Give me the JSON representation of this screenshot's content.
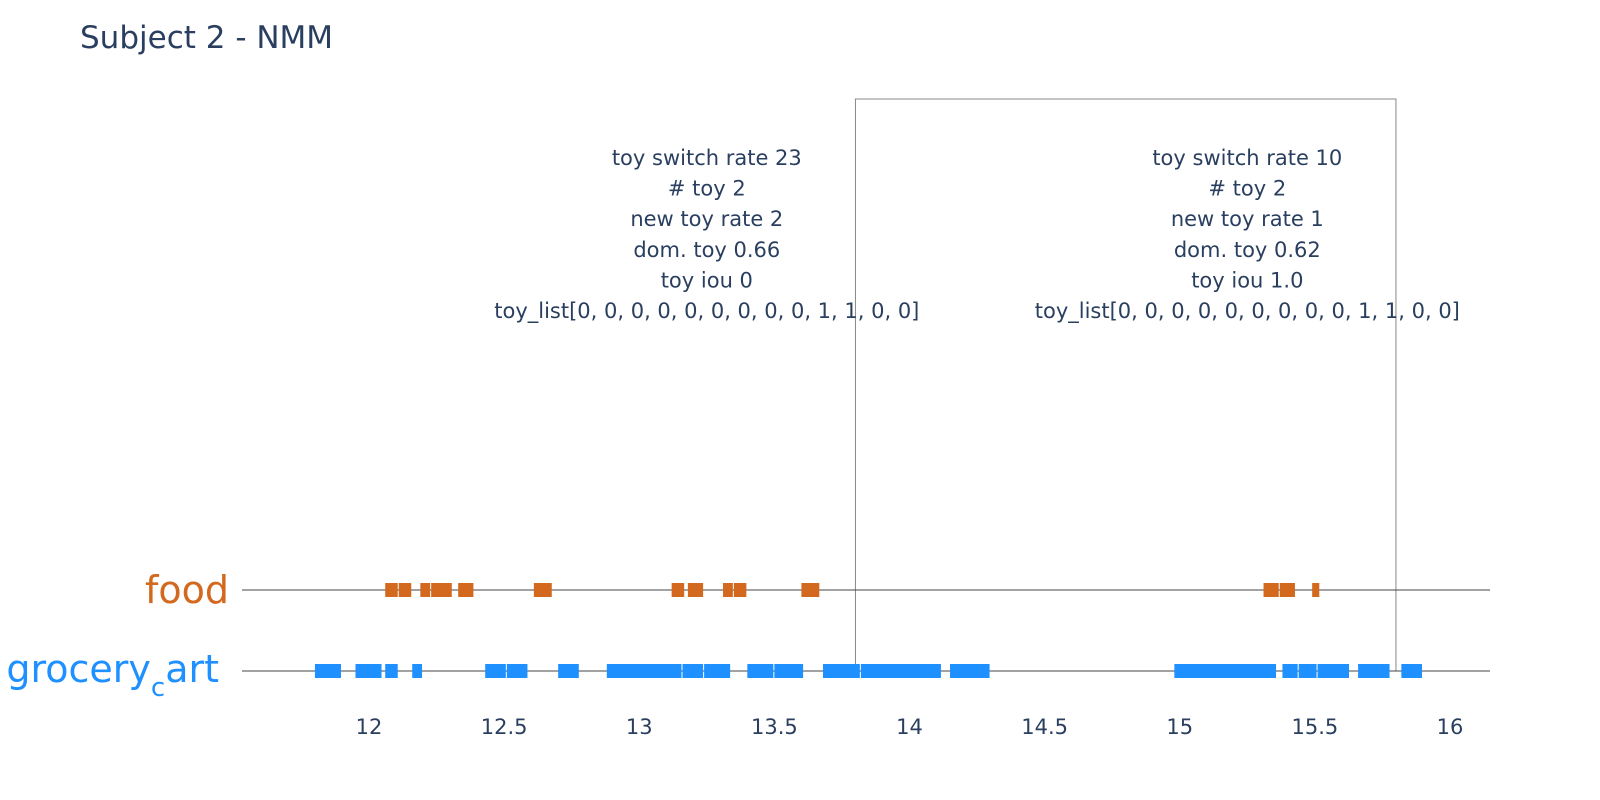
{
  "chart_data": {
    "type": "timeline",
    "title": "Subject 2 - NMM",
    "xlim": [
      11.55,
      16.15
    ],
    "x_ticks": [
      12,
      12.5,
      13,
      13.5,
      14,
      14.5,
      15,
      15.5,
      16
    ],
    "x_tick_labels": [
      "12",
      "12.5",
      "13",
      "13.5",
      "14",
      "14.5",
      "15",
      "15.5",
      "16"
    ],
    "categories": [
      "food",
      "grocery_cart"
    ],
    "category_label_main": [
      "food",
      "grocery"
    ],
    "category_label_sub": [
      "",
      "c"
    ],
    "category_label_tail": [
      "",
      "art"
    ],
    "colors": {
      "food": "#d2691e",
      "grocery_cart": "#1e90ff",
      "text": "#2a3f5f",
      "axis_line": "#444444",
      "box": "#888888"
    },
    "series": [
      {
        "name": "food",
        "segments": [
          [
            12.06,
            12.11
          ],
          [
            12.11,
            12.16
          ],
          [
            12.19,
            12.23
          ],
          [
            12.23,
            12.31
          ],
          [
            12.33,
            12.39
          ],
          [
            12.61,
            12.68
          ],
          [
            13.12,
            13.17
          ],
          [
            13.18,
            13.24
          ],
          [
            13.31,
            13.35
          ],
          [
            13.35,
            13.4
          ],
          [
            13.6,
            13.67
          ],
          [
            15.31,
            15.37
          ],
          [
            15.37,
            15.43
          ],
          [
            15.49,
            15.52
          ]
        ]
      },
      {
        "name": "grocery_cart",
        "segments": [
          [
            11.8,
            11.9
          ],
          [
            11.95,
            12.05
          ],
          [
            12.06,
            12.11
          ],
          [
            12.16,
            12.2
          ],
          [
            12.43,
            12.51
          ],
          [
            12.51,
            12.59
          ],
          [
            12.7,
            12.78
          ],
          [
            12.88,
            13.16
          ],
          [
            13.16,
            13.24
          ],
          [
            13.24,
            13.34
          ],
          [
            13.4,
            13.5
          ],
          [
            13.5,
            13.61
          ],
          [
            13.68,
            13.82
          ],
          [
            13.82,
            14.12
          ],
          [
            14.15,
            14.3
          ],
          [
            14.98,
            15.36
          ],
          [
            15.38,
            15.44
          ],
          [
            15.44,
            15.51
          ],
          [
            15.51,
            15.63
          ],
          [
            15.66,
            15.78
          ],
          [
            15.82,
            15.9
          ]
        ]
      }
    ],
    "box": {
      "x0": 13.8,
      "x1": 15.8
    },
    "annotations": [
      {
        "x": 13.25,
        "lines": [
          "toy switch rate 23",
          "# toy 2",
          "new toy rate 2",
          "dom. toy 0.66",
          "toy iou 0",
          "toy_list[0, 0, 0, 0, 0, 0, 0, 0, 0, 1, 1, 0, 0]"
        ]
      },
      {
        "x": 15.25,
        "lines": [
          "toy switch rate 10",
          "# toy 2",
          "new toy rate 1",
          "dom. toy 0.62",
          "toy iou 1.0",
          "toy_list[0, 0, 0, 0, 0, 0, 0, 0, 0, 1, 1, 0, 0]"
        ]
      }
    ]
  }
}
